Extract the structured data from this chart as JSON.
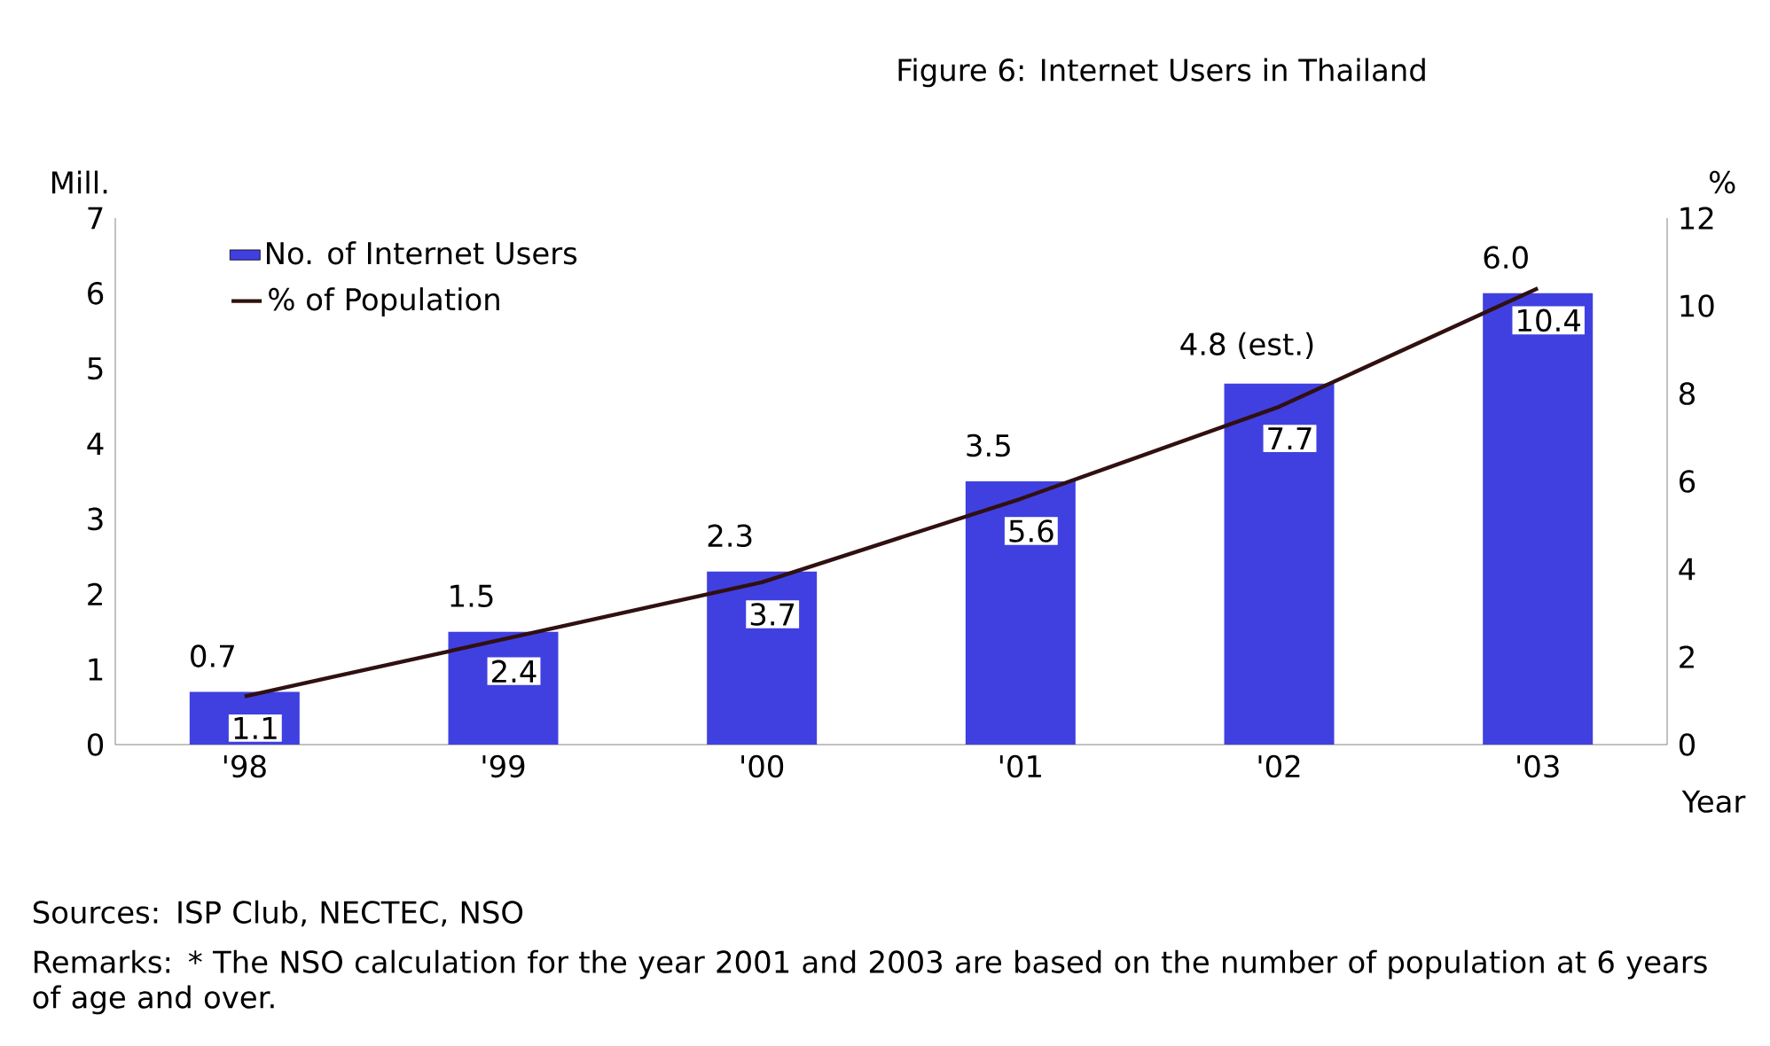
{
  "chart_data": {
    "type": "bar",
    "title": "Figure 6: Internet Users in Thailand",
    "xlabel": "Year",
    "ylabel": "Mill.",
    "y2label": "%",
    "categories": [
      "'98",
      "'99",
      "'00",
      "'01",
      "'02",
      "'03"
    ],
    "series": [
      {
        "name": "No. of Internet Users",
        "color": "#4040e0",
        "values": [
          0.7,
          1.5,
          2.3,
          3.5,
          4.8,
          6.0
        ],
        "value_labels": [
          "0.7",
          "1.5",
          "2.3",
          "3.5",
          "4.8 (est.)",
          "6.0"
        ]
      },
      {
        "name": "% of Population",
        "type": "line",
        "axis": "y2",
        "color": "#301010",
        "values": [
          1.1,
          2.4,
          3.7,
          5.6,
          7.7,
          10.4
        ],
        "value_labels": [
          "1.1",
          "2.4",
          "3.7",
          "5.6",
          "7.7",
          "10.4"
        ]
      }
    ],
    "ylim": [
      0,
      7
    ],
    "yticks": [
      0,
      1,
      2,
      3,
      4,
      5,
      6,
      7
    ],
    "y2lim": [
      0,
      12
    ],
    "y2ticks": [
      0,
      2,
      4,
      6,
      8,
      10,
      12
    ],
    "legend": "top left",
    "marker": "none",
    "line_style": "solid",
    "annotations": [
      "Sources: ISP Club, NECTEC, NSO",
      "Remarks: * The NSO calculation for the year 2001 and 2003 are based on the number of population at 6 years of age and over."
    ]
  }
}
